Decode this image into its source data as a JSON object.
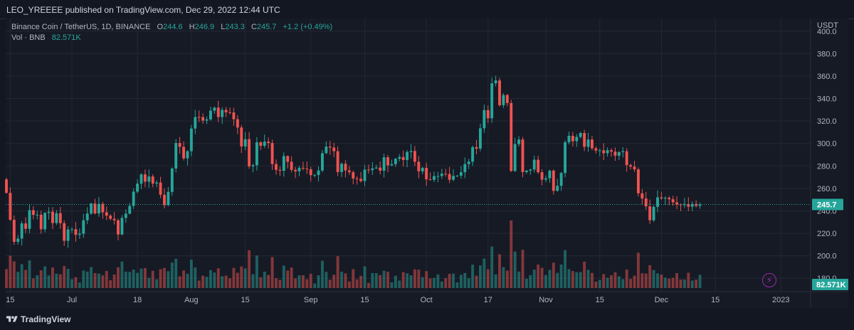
{
  "publish_bar": {
    "text": "LEO_YREEEE published on TradingView.com, Dec 29, 2022 12:44 UTC"
  },
  "legend": {
    "symbol": "Binance Coin / TetherUS, 1D, BINANCE",
    "o_label": "O",
    "o_value": "244.6",
    "h_label": "H",
    "h_value": "246.9",
    "l_label": "L",
    "l_value": "243.3",
    "c_label": "C",
    "c_value": "245.7",
    "change": "+1.2 (+0.49%)",
    "vol_label": "Vol · BNB",
    "vol_value": "82.571K"
  },
  "brand": {
    "name": "TradingView",
    "icon": "tradingview-logo-icon"
  },
  "alert_icon": "lightning-bolt-icon",
  "colors": {
    "up": "#26a69a",
    "down": "#ef5350",
    "bg": "#161a25",
    "grid": "#242833",
    "last_price": "#26a69a",
    "volume_tag": "#26a69a",
    "alert": "#9c27b0"
  },
  "chart_data": {
    "type": "candlestick",
    "symbol": "BNBUSDT",
    "exchange": "BINANCE",
    "interval": "1D",
    "currency": "USDT",
    "ylim": [
      170,
      410
    ],
    "y_ticks": [
      180,
      200,
      220,
      240,
      260,
      280,
      300,
      320,
      340,
      360,
      380,
      400
    ],
    "y_tick_labels": [
      "180.0",
      "200.0",
      "220.0",
      "240.0",
      "260.0",
      "280.0",
      "300.0",
      "320.0",
      "340.0",
      "360.0",
      "380.0",
      "400.0"
    ],
    "x_ticks": [
      {
        "label": "15",
        "date": "2022-06-15"
      },
      {
        "label": "Jul",
        "date": "2022-07-01"
      },
      {
        "label": "18",
        "date": "2022-07-18"
      },
      {
        "label": "Aug",
        "date": "2022-08-01"
      },
      {
        "label": "15",
        "date": "2022-08-15"
      },
      {
        "label": "Sep",
        "date": "2022-09-01"
      },
      {
        "label": "15",
        "date": "2022-09-15"
      },
      {
        "label": "Oct",
        "date": "2022-10-01"
      },
      {
        "label": "17",
        "date": "2022-10-17"
      },
      {
        "label": "Nov",
        "date": "2022-11-01"
      },
      {
        "label": "15",
        "date": "2022-11-15"
      },
      {
        "label": "Dec",
        "date": "2022-12-01"
      },
      {
        "label": "15",
        "date": "2022-12-15"
      },
      {
        "label": "2023",
        "date": "2023-01-01"
      }
    ],
    "last_price": 245.7,
    "last_price_label": "245.7",
    "last_volume_label": "82.571K",
    "date_range": [
      "2022-06-14",
      "2022-12-29"
    ],
    "closes": [
      256.0,
      232.0,
      212.4,
      215.3,
      228.8,
      224.0,
      240.6,
      236.4,
      236.5,
      223.6,
      238.2,
      239.2,
      229.1,
      237.9,
      229.0,
      213.3,
      223.4,
      223.6,
      218.6,
      219.6,
      231.6,
      237.6,
      246.5,
      237.7,
      246.2,
      238.7,
      235.7,
      232.9,
      231.6,
      218.9,
      233.7,
      237.5,
      244.4,
      257.1,
      264.2,
      272.5,
      266.0,
      270.6,
      264.3,
      265.2,
      254.3,
      245.1,
      256.9,
      277.7,
      300.4,
      297.0,
      286.7,
      293.1,
      313.3,
      323.5,
      323.4,
      320.4,
      321.4,
      329.2,
      331.9,
      323.5,
      329.9,
      327.8,
      327.6,
      321.6,
      314.2,
      297.3,
      303.8,
      279.6,
      280.6,
      301.0,
      297.9,
      301.6,
      300.4,
      281.7,
      276.5,
      275.7,
      288.8,
      283.7,
      276.5,
      275.2,
      278.3,
      277.6,
      277.0,
      271.8,
      271.9,
      275.9,
      291.3,
      297.2,
      296.3,
      293.1,
      274.6,
      281.9,
      276.0,
      274.4,
      268.8,
      268.5,
      266.5,
      276.7,
      276.3,
      277.8,
      278.5,
      275.8,
      287.7,
      280.5,
      281.6,
      286.4,
      287.9,
      285.3,
      292.4,
      293.3,
      283.7,
      275.2,
      278.3,
      268.1,
      267.6,
      270.9,
      271.0,
      273.1,
      272.8,
      267.7,
      271.1,
      271.3,
      274.4,
      281.6,
      283.8,
      296.7,
      295.4,
      313.5,
      329.7,
      322.4,
      353.6,
      356.1,
      334.1,
      343.1,
      336.0,
      275.5,
      299.4,
      303.5,
      274.5,
      275.8,
      276.8,
      285.5,
      274.4,
      267.8,
      269.0,
      275.8,
      257.8,
      262.3,
      273.7,
      301.1,
      306.8,
      302.0,
      305.8,
      309.3,
      297.0,
      303.5,
      295.7,
      293.7,
      293.9,
      291.3,
      294.0,
      292.7,
      289.1,
      292.3,
      293.1,
      280.7,
      279.4,
      276.9,
      255.6,
      251.0,
      244.0,
      231.6,
      243.6,
      252.0,
      251.1,
      251.6,
      250.3,
      247.6,
      245.6,
      245.2,
      246.0,
      243.7,
      246.1,
      244.5,
      245.7
    ]
  }
}
